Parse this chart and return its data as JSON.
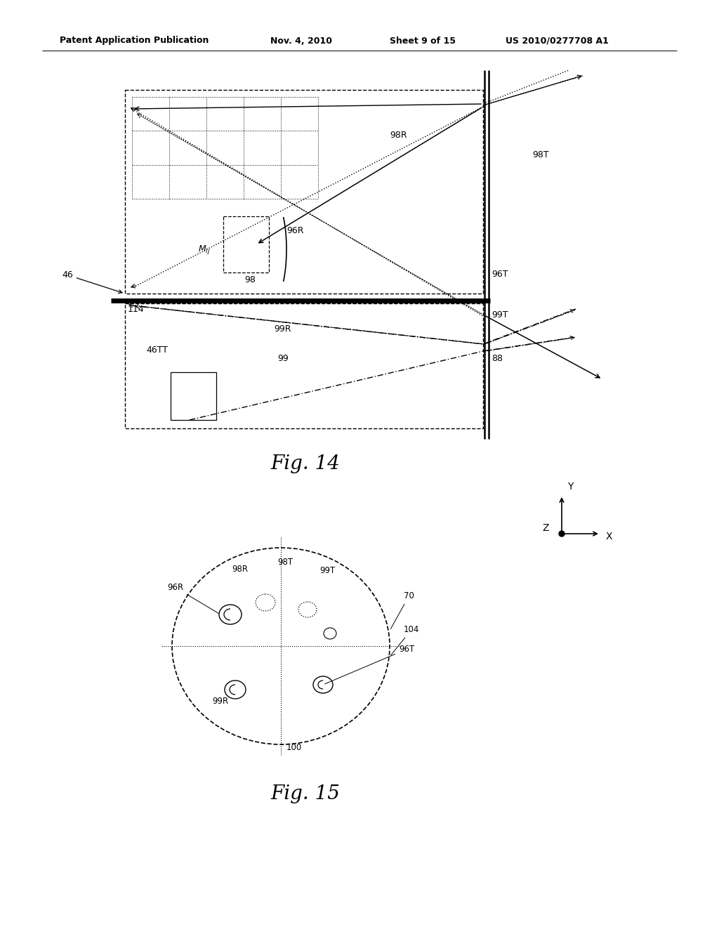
{
  "bg_color": "#ffffff",
  "header_text": "Patent Application Publication",
  "header_date": "Nov. 4, 2010",
  "header_sheet": "Sheet 9 of 15",
  "header_patent": "US 2010/0277708 A1",
  "fig14_caption": "Fig. 14",
  "fig15_caption": "Fig. 15"
}
